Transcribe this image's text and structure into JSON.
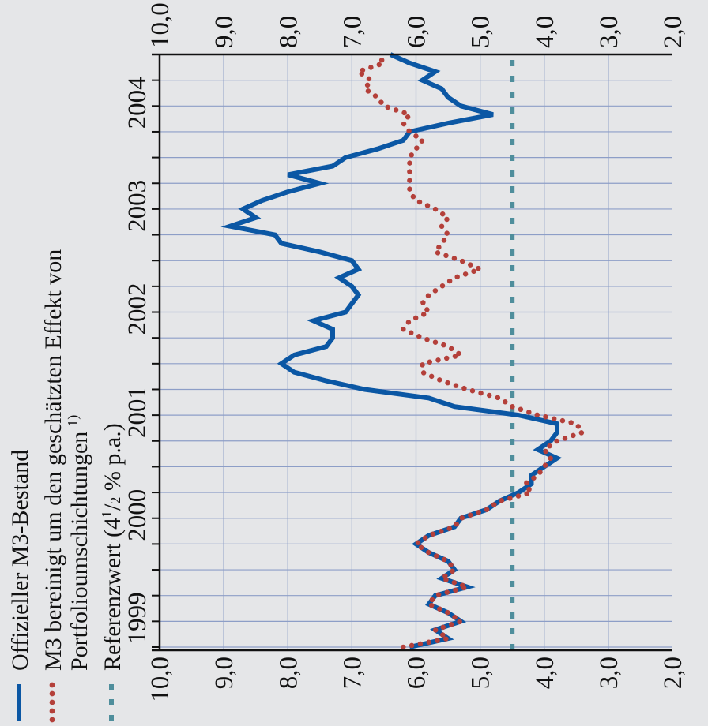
{
  "chart_data": {
    "type": "line",
    "title": "",
    "xlabel": "",
    "ylabel": "",
    "ylim": [
      2.0,
      10.0
    ],
    "yticks": [
      "2,0",
      "3,0",
      "4,0",
      "5,0",
      "6,0",
      "7,0",
      "8,0",
      "9,0",
      "10,0"
    ],
    "year_labels": [
      "1999",
      "2000",
      "2001",
      "2002",
      "2003",
      "2004"
    ],
    "x_range": [
      "1999-01",
      "2004-10"
    ],
    "grid": true,
    "legend_position": "top",
    "legend": {
      "official": "Offizieller M3-Bestand",
      "adjusted_line1": "M3 bereinigt um den geschätzten Effekt von",
      "adjusted_line2": "Portfolioumschichtungen",
      "adjusted_footnote": "1)",
      "reference_prefix": "Referenzwert (4",
      "reference_num": "1",
      "reference_den": "2",
      "reference_suffix": " % p.a.)"
    },
    "colors": {
      "official": "#0b57a4",
      "adjusted": "#b4403a",
      "reference": "#4f8e9c",
      "grid": "#8d9ec7"
    },
    "reference_value": 4.5,
    "series": [
      {
        "key": "official",
        "x": [
          "1999-01",
          "1999-02",
          "1999-03",
          "1999-04",
          "1999-05",
          "1999-06",
          "1999-07",
          "1999-08",
          "1999-09",
          "1999-10",
          "1999-11",
          "1999-12",
          "2000-01",
          "2000-02",
          "2000-03",
          "2000-04",
          "2000-05",
          "2000-06",
          "2000-07",
          "2000-08",
          "2000-09",
          "2000-10",
          "2000-11",
          "2000-12",
          "2001-01",
          "2001-02",
          "2001-03",
          "2001-04",
          "2001-05",
          "2001-06",
          "2001-07",
          "2001-08",
          "2001-09",
          "2001-10",
          "2001-11",
          "2001-12",
          "2002-01",
          "2002-02",
          "2002-03",
          "2002-04",
          "2002-05",
          "2002-06",
          "2002-07",
          "2002-08",
          "2002-09",
          "2002-10",
          "2002-11",
          "2002-12",
          "2003-01",
          "2003-02",
          "2003-03",
          "2003-04",
          "2003-05",
          "2003-06",
          "2003-07",
          "2003-08",
          "2003-09",
          "2003-10",
          "2003-11",
          "2003-12",
          "2004-01",
          "2004-02",
          "2004-03",
          "2004-04",
          "2004-05",
          "2004-06",
          "2004-07",
          "2004-08",
          "2004-09",
          "2004-10"
        ],
        "values": [
          6.1,
          5.5,
          5.7,
          5.3,
          5.5,
          5.8,
          5.7,
          5.2,
          5.6,
          5.4,
          5.5,
          5.8,
          6.0,
          5.8,
          5.4,
          5.3,
          4.9,
          4.7,
          4.4,
          4.2,
          4.2,
          4.0,
          3.8,
          4.1,
          3.9,
          3.8,
          3.8,
          4.4,
          5.4,
          5.8,
          6.8,
          7.4,
          7.9,
          8.1,
          7.9,
          7.4,
          7.3,
          7.3,
          7.6,
          7.1,
          7.0,
          6.9,
          7.0,
          7.2,
          6.9,
          7.0,
          7.5,
          8.1,
          8.2,
          8.9,
          8.5,
          8.7,
          8.4,
          8.0,
          7.5,
          8.0,
          7.3,
          7.1,
          6.6,
          6.2,
          6.1,
          5.5,
          4.8,
          5.3,
          5.5,
          5.6,
          5.9,
          5.7,
          6.1,
          6.4
        ]
      },
      {
        "key": "adjusted",
        "x": [
          "1999-01",
          "1999-02",
          "1999-03",
          "1999-04",
          "1999-05",
          "1999-06",
          "1999-07",
          "1999-08",
          "1999-09",
          "1999-10",
          "1999-11",
          "1999-12",
          "2000-01",
          "2000-02",
          "2000-03",
          "2000-04",
          "2000-05",
          "2000-06",
          "2000-07",
          "2000-08",
          "2000-09",
          "2000-10",
          "2000-11",
          "2000-12",
          "2001-01",
          "2001-02",
          "2001-03",
          "2001-04",
          "2001-05",
          "2001-06",
          "2001-07",
          "2001-08",
          "2001-09",
          "2001-10",
          "2001-11",
          "2001-12",
          "2002-01",
          "2002-02",
          "2002-03",
          "2002-04",
          "2002-05",
          "2002-06",
          "2002-07",
          "2002-08",
          "2002-09",
          "2002-10",
          "2002-11",
          "2002-12",
          "2003-01",
          "2003-02",
          "2003-03",
          "2003-04",
          "2003-05",
          "2003-06",
          "2003-07",
          "2003-08",
          "2003-09",
          "2003-10",
          "2003-11",
          "2003-12",
          "2004-01",
          "2004-02",
          "2004-03",
          "2004-04",
          "2004-05",
          "2004-06",
          "2004-07",
          "2004-08",
          "2004-09",
          "2004-10"
        ],
        "values": [
          6.2,
          5.5,
          5.7,
          5.3,
          5.5,
          5.8,
          5.7,
          5.2,
          5.6,
          5.4,
          5.5,
          5.8,
          6.0,
          5.8,
          5.4,
          5.3,
          4.9,
          4.7,
          4.2,
          4.3,
          4.1,
          4.0,
          3.9,
          4.0,
          3.8,
          3.4,
          3.5,
          4.1,
          4.5,
          4.7,
          5.2,
          5.6,
          5.9,
          5.9,
          5.3,
          5.5,
          5.9,
          6.2,
          6.1,
          5.8,
          5.9,
          5.8,
          5.6,
          5.4,
          5.0,
          5.3,
          5.7,
          5.6,
          5.5,
          5.6,
          5.5,
          5.7,
          6.0,
          6.1,
          6.1,
          6.1,
          6.1,
          6.1,
          6.0,
          5.9,
          6.1,
          6.2,
          6.1,
          6.5,
          6.6,
          6.8,
          6.7,
          6.9,
          6.5,
          6.6
        ]
      }
    ]
  }
}
